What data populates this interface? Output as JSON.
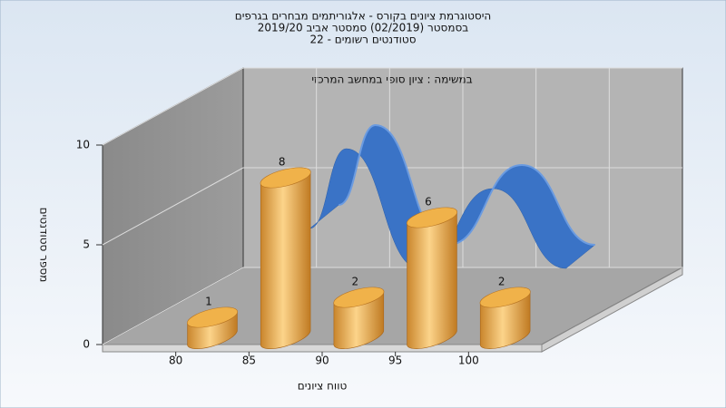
{
  "chart_data": {
    "type": "histogram",
    "title_lines": [
      "היסטוגרמת ציונים בקורס - אלגוריתמים מבחרים בגרפים",
      "בסמסטר (02/2019) סמסטר אביב 2019/20",
      "סטודנטים רשומים - 22"
    ],
    "annotation": "במשימה : ציון סופי במחשב המרכזי",
    "x_label": "טווח ציונים",
    "y_label": "מספר סטודנטים",
    "bins": [
      80,
      85,
      90,
      95,
      100,
      105
    ],
    "values": [
      1,
      8,
      2,
      6,
      2
    ],
    "color": "#e9a84a",
    "xlim": [
      75,
      105
    ],
    "xticks": [
      80,
      85,
      90,
      95,
      100
    ],
    "ylim": [
      0,
      10
    ],
    "yticks": [
      0,
      5,
      10
    ],
    "grid": true,
    "curve": {
      "color": "#3a73c6",
      "x": [
        85,
        87.5,
        92.5,
        97.5,
        102.5
      ],
      "values": [
        4,
        8,
        2,
        6,
        2
      ]
    }
  }
}
